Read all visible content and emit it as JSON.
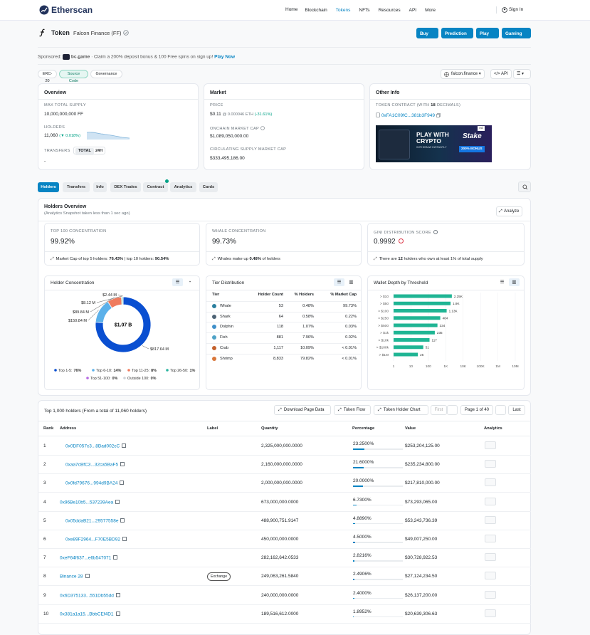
{
  "nav": {
    "logo": "Etherscan",
    "menu": [
      "Home",
      "Blockchain",
      "Tokens",
      "NFTs",
      "Resources",
      "API",
      "More"
    ],
    "active": "Tokens",
    "sign_in": "Sign In"
  },
  "header": {
    "label": "Token",
    "name": "Falcon Finance (FF)",
    "buttons": [
      "Buy",
      "Prediction",
      "Play",
      "Gaming"
    ]
  },
  "sponsored": {
    "label": "Sponsored:",
    "brand": "bc.game",
    "text": "· Claim a 200% deposit bonus & 100 Free spins on sign up!",
    "link": "Play Now"
  },
  "tags": [
    "ERC-20",
    "Source Code",
    "Governance"
  ],
  "toolbar": {
    "site": "falcon.finance",
    "api": "API"
  },
  "overview": {
    "title": "Overview",
    "max_supply_label": "MAX TOTAL SUPPLY",
    "max_supply": "10,000,000,000 FF",
    "holders_label": "HOLDERS",
    "holders": "11,060",
    "holders_change": "(▼ 0.018%)",
    "transfers_label": "TRANSFERS",
    "toggle": [
      "TOTAL",
      "24H"
    ],
    "transfers": "-"
  },
  "market": {
    "title": "Market",
    "price_label": "PRICE",
    "price": "$0.11",
    "price_eth": "@ 0.000046 ETH",
    "price_change": "(-31.61%)",
    "onchain_cap_label": "ONCHAIN MARKET CAP",
    "onchain_cap": "$1,089,050,000.00",
    "circ_cap_label": "CIRCULATING SUPPLY MARKET CAP",
    "circ_cap": "$333,495,186.00"
  },
  "other_info": {
    "title": "Other Info",
    "contract_label": [
      "TOKEN CONTRACT (WITH ",
      "18",
      " DECIMALS)"
    ],
    "contract": "0xFA1C09fC...381b3F949",
    "ad": {
      "badge": "Ad",
      "headline": "PLAY WITH CRYPTO",
      "sub": "WITHDRAW INSTANTLY",
      "brand": "Stake",
      "bonus": "200% BONUS"
    }
  },
  "tabs": [
    "Holders",
    "Transfers",
    "Info",
    "DEX Trades",
    "Contract",
    "Analytics",
    "Cards"
  ],
  "holders_overview": {
    "title": "Holders Overview",
    "subtitle": "(Analytics Snapshot taken less than 1 sec ago)",
    "analyze": "Analyze",
    "stats": [
      {
        "label": "TOP 100 CONCENTRATION",
        "value": "99.92%",
        "note": [
          "Market Cap of top 5 holders: ",
          "76.43%",
          " | top 10 holders: ",
          "90.54%"
        ]
      },
      {
        "label": "WHALE CONCENTRATION",
        "value": "99.73%",
        "note": [
          "Whales make up ",
          "0.48%",
          " of holders"
        ]
      },
      {
        "label": "GINI DISTRIBUTION SCORE",
        "value": "0.9992",
        "note": [
          "There are ",
          "12",
          " holders who own at least 1% of total supply"
        ]
      }
    ]
  },
  "holder_concentration": {
    "title": "Holder Concentration",
    "total": "$1.07 B",
    "segments": [
      {
        "name": "Top 1-5:",
        "share": "76%",
        "amount": 817.64,
        "amount_label": "$817.64 M",
        "color": "#0a4fd1"
      },
      {
        "name": "Top 6-10:",
        "share": "14%",
        "amount": 150.84,
        "amount_label": "$150.84 M",
        "color": "#5cb1ea"
      },
      {
        "name": "Top 11-25:",
        "share": "8%",
        "amount": 89.84,
        "amount_label": "$89.84 M",
        "color": "#ef7b5e"
      },
      {
        "name": "Top 26-50:",
        "share": "1%",
        "amount": 8.12,
        "amount_label": "$8.12 M",
        "color": "#2ab5a0"
      },
      {
        "name": "Top 51-100:",
        "share": "0%",
        "amount": 2.44,
        "amount_label": "$2.44 M",
        "color": "#b66ae3"
      },
      {
        "name": "Outside 100:",
        "share": "0%",
        "amount": null,
        "color": "#cfd4da"
      }
    ]
  },
  "tier_distribution": {
    "title": "Tier Distribution",
    "headers": [
      "Tier",
      "Holder Count",
      "% Holders",
      "% Market Cap"
    ],
    "rows": [
      [
        "Whale",
        "53",
        "0.48%",
        "99.73%"
      ],
      [
        "Shark",
        "64",
        "0.58%",
        "0.22%"
      ],
      [
        "Dolphin",
        "118",
        "1.07%",
        "0.03%"
      ],
      [
        "Fish",
        "881",
        "7.96%",
        "0.02%"
      ],
      [
        "Crab",
        "1,117",
        "10.09%",
        "< 0.01%"
      ],
      [
        "Shrimp",
        "8,833",
        "79.82%",
        "< 0.01%"
      ]
    ]
  },
  "wallet_depth": {
    "type": "bar",
    "title": "Wallet Depth by Threshold",
    "categories": [
      "> $10",
      "> $50",
      "> $100",
      "> $250",
      "> $500",
      "> $1k",
      "> $10k",
      "> $100k",
      "> $1M"
    ],
    "values": [
      2250,
      1900,
      1130,
      484,
      334,
      235,
      117,
      51,
      25
    ],
    "value_labels": [
      "2.25K",
      "1.9K",
      "1.13K",
      "484",
      "334",
      "235",
      "117",
      "51",
      "25"
    ],
    "color": "#1fb594",
    "log_x": true,
    "xlim": [
      1,
      10000000
    ],
    "xticks": [
      1,
      10,
      100,
      {
        "value": 1000,
        "label": "1K"
      },
      {
        "value": 10000,
        "label": "10K"
      },
      {
        "value": 100000,
        "label": "100K"
      },
      {
        "value": 1000000,
        "label": "1M"
      },
      {
        "value": 10000000,
        "label": "10M"
      }
    ],
    "grid": true
  },
  "top_holders": {
    "title": "Top 1,000 holders (From a total of 11,060 holders)",
    "buttons": [
      "Download Page Data",
      "Token Flow",
      "Token Holder Chart"
    ],
    "pager": {
      "first": "First",
      "page": "Page 1 of 40",
      "last": "Last"
    },
    "headers": [
      "Rank",
      "Address",
      "Label",
      "Quantity",
      "Percentage",
      "Value",
      "Analytics"
    ],
    "rows": [
      {
        "rank": "1",
        "address": "0x0DF057c3...8Bad002cC",
        "contract": true,
        "quantity": "2,325,000,000.0000",
        "percentage": 23.25,
        "percentage_label": "23.2500%",
        "value": "$253,204,125.00"
      },
      {
        "rank": "2",
        "address": "0xaa7cBfC3...32ca5BaF5",
        "contract": true,
        "quantity": "2,160,000,000.0000",
        "percentage": 21.6,
        "percentage_label": "21.6000%",
        "value": "$235,234,800.00"
      },
      {
        "rank": "3",
        "address": "0x0fd79676...994d9BA24",
        "contract": true,
        "quantity": "2,000,000,000.0000",
        "percentage": 20,
        "percentage_label": "20.0000%",
        "value": "$217,810,000.00"
      },
      {
        "rank": "4",
        "address": "0x96Be10b5...537239Aea",
        "contract": false,
        "quantity": "673,000,000.0000",
        "percentage": 6.73,
        "percentage_label": "6.7300%",
        "value": "$73,293,065.00"
      },
      {
        "rank": "5",
        "address": "0x05ddaB21...29577558e",
        "contract": true,
        "quantity": "488,900,751.9147",
        "percentage": 4.889,
        "percentage_label": "4.8890%",
        "value": "$53,243,736.39"
      },
      {
        "rank": "6",
        "address": "0xe89F2964...F70E5BD92",
        "contract": true,
        "quantity": "450,000,000.0000",
        "percentage": 4.5,
        "percentage_label": "4.5000%",
        "value": "$49,007,250.00"
      },
      {
        "rank": "7",
        "address": "0xeF64f637...e6b547071",
        "contract": false,
        "quantity": "282,162,642.0533",
        "percentage": 2.8216,
        "percentage_label": "2.8216%",
        "value": "$30,728,922.53"
      },
      {
        "rank": "8",
        "address": "Binance 28",
        "contract": false,
        "label": "Exchange",
        "quantity": "249,063,261.5840",
        "percentage": 2.4906,
        "percentage_label": "2.4906%",
        "value": "$27,124,234.50"
      },
      {
        "rank": "9",
        "address": "0x6D375133...551Db55dd",
        "contract": false,
        "quantity": "240,000,000.0000",
        "percentage": 2.4,
        "percentage_label": "2.4000%",
        "value": "$26,137,200.00"
      },
      {
        "rank": "10",
        "address": "0x381a1a15...BbbCEf4D1",
        "contract": false,
        "quantity": "189,516,612.0000",
        "percentage": 1.8952,
        "percentage_label": "1.8952%",
        "value": "$20,639,306.63"
      }
    ]
  }
}
